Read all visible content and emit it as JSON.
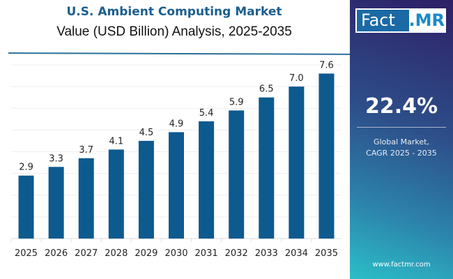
{
  "header": {
    "title": "U.S. Ambient Computing Market",
    "subtitle": "Value (USD Billion) Analysis, 2025-2035"
  },
  "chart_data": {
    "type": "bar",
    "categories": [
      "2025",
      "2026",
      "2027",
      "2028",
      "2029",
      "2030",
      "2031",
      "2032",
      "2033",
      "2034",
      "2035"
    ],
    "values": [
      2.9,
      3.3,
      3.7,
      4.1,
      4.5,
      4.9,
      5.4,
      5.9,
      6.5,
      7.0,
      7.6
    ],
    "labels": [
      "2.9",
      "3.3",
      "3.7",
      "4.1",
      "4.5",
      "4.9",
      "5.4",
      "5.9",
      "6.5",
      "7.0",
      "7.6"
    ],
    "ylim": [
      0,
      8
    ],
    "grid": true,
    "bar_color": "#0d5a8f"
  },
  "panel": {
    "logo_left": "Fact",
    "logo_right": ".MR",
    "cagr": "22.4%",
    "desc_line1": "Global Market,",
    "desc_line2": "CAGR 2025 - 2035",
    "url": "www.factmr.com"
  }
}
